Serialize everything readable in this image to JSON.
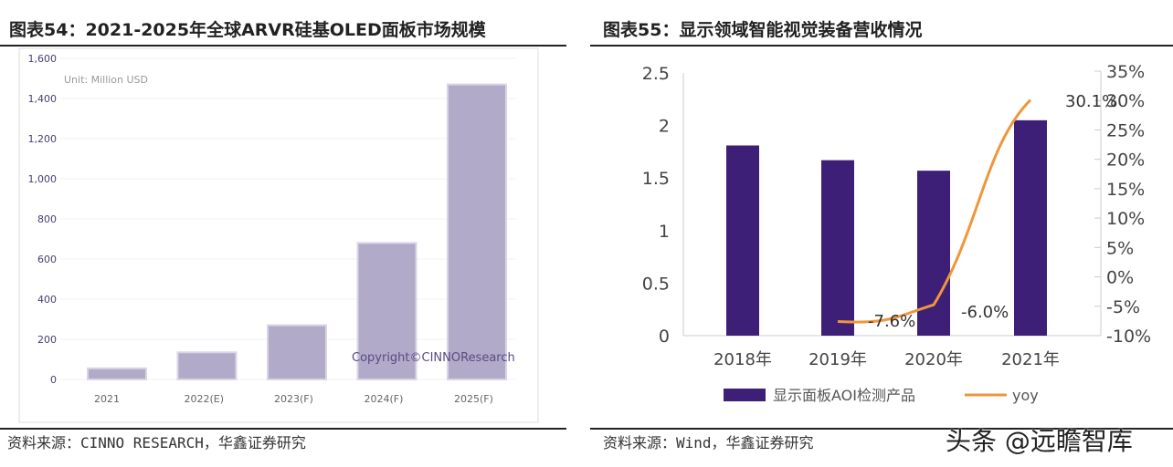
{
  "chart_data": [
    {
      "type": "bar",
      "title": "图表54：2021-2025年全球ARVR硅基OLED面板市场规模",
      "annotation": "Unit: Million USD",
      "watermark": "Copyright©CINNOResearch",
      "categories": [
        "2021",
        "2022(E)",
        "2023(F)",
        "2024(F)",
        "2025(F)"
      ],
      "values": [
        55,
        135,
        270,
        680,
        1470
      ],
      "ylim": [
        0,
        1600
      ],
      "yticks": [
        "0",
        "200",
        "400",
        "600",
        "800",
        "1,000",
        "1,200",
        "1,400",
        "1,600"
      ],
      "grid": true,
      "bar_color": "#b1aac8",
      "source": "资料来源：CINNO RESEARCH，华鑫证券研究"
    },
    {
      "type": "bar+line",
      "title": "图表55：显示领域智能视觉装备营收情况",
      "categories": [
        "2018年",
        "2019年",
        "2020年",
        "2021年"
      ],
      "series": [
        {
          "name": "显示面板AOI检测产品",
          "type": "bar",
          "axis": "left",
          "values": [
            1.81,
            1.67,
            1.57,
            2.05
          ],
          "color": "#3d1f78"
        },
        {
          "name": "yoy",
          "type": "line",
          "axis": "right",
          "values": [
            null,
            -7.6,
            -6.0,
            30.1
          ],
          "labels": [
            "",
            "-7.6%",
            "-6.0%",
            "30.1%"
          ],
          "color": "#f0963a"
        }
      ],
      "ylim_left": [
        0,
        2.5
      ],
      "yticks_left": [
        "0",
        "0.5",
        "1",
        "1.5",
        "2",
        "2.5"
      ],
      "ylim_right": [
        -10,
        35
      ],
      "yticks_right": [
        "-10%",
        "-5%",
        "0%",
        "5%",
        "10%",
        "15%",
        "20%",
        "25%",
        "30%",
        "35%"
      ],
      "legend_position": "bottom",
      "grid": false,
      "source": "资料来源：Wind，华鑫证券研究"
    }
  ],
  "watermark": "头条 @远瞻智库"
}
